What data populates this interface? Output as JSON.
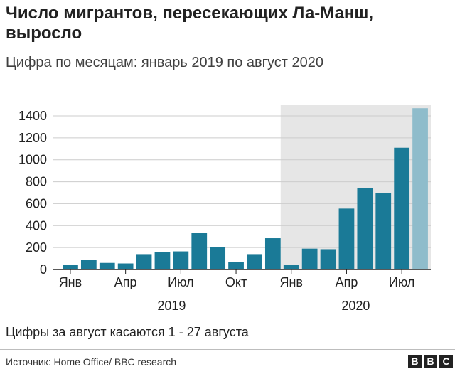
{
  "chart_data": {
    "type": "bar",
    "title": "Число мигрантов, пересекающих Ла-Манш, выросло",
    "subtitle": "Цифра по месяцам: январь 2019 по август 2020",
    "months": [
      "Янв 2019",
      "Фев 2019",
      "Мар 2019",
      "Апр 2019",
      "Май 2019",
      "Июн 2019",
      "Июл 2019",
      "Авг 2019",
      "Сен 2019",
      "Окт 2019",
      "Ноя 2019",
      "Дек 2019",
      "Янв 2020",
      "Фев 2020",
      "Мар 2020",
      "Апр 2020",
      "Май 2020",
      "Июн 2020",
      "Июл 2020",
      "Авг 2020"
    ],
    "values": [
      40,
      85,
      60,
      55,
      140,
      160,
      165,
      335,
      205,
      70,
      140,
      285,
      45,
      190,
      185,
      555,
      740,
      700,
      1110,
      1470
    ],
    "highlighted_range": {
      "from": "Янв 2020",
      "to": "Авг 2020"
    },
    "partial_month": "Авг 2020",
    "x_tick_labels": [
      {
        "month_index": 0,
        "label": "Янв"
      },
      {
        "month_index": 3,
        "label": "Апр"
      },
      {
        "month_index": 6,
        "label": "Июл"
      },
      {
        "month_index": 9,
        "label": "Окт"
      },
      {
        "month_index": 12,
        "label": "Янв"
      },
      {
        "month_index": 15,
        "label": "Апр"
      },
      {
        "month_index": 18,
        "label": "Июл"
      }
    ],
    "year_labels": [
      {
        "center_month_index": 5.5,
        "label": "2019"
      },
      {
        "center_month_index": 15.5,
        "label": "2020"
      }
    ],
    "y_ticks": [
      0,
      200,
      400,
      600,
      800,
      1000,
      1200,
      1400
    ],
    "ylim": [
      0,
      1500
    ],
    "grid": true,
    "colors": {
      "bar": "#1a7a97",
      "bar_partial": "#8fbccb",
      "highlight_bg": "#e6e6e6",
      "grid": "#cccccc",
      "axis": "#222222"
    }
  },
  "note": "Цифры за август касаются 1 - 27 августа",
  "source": "Источник: Home Office/ BBC research",
  "logo": [
    "B",
    "B",
    "C"
  ]
}
